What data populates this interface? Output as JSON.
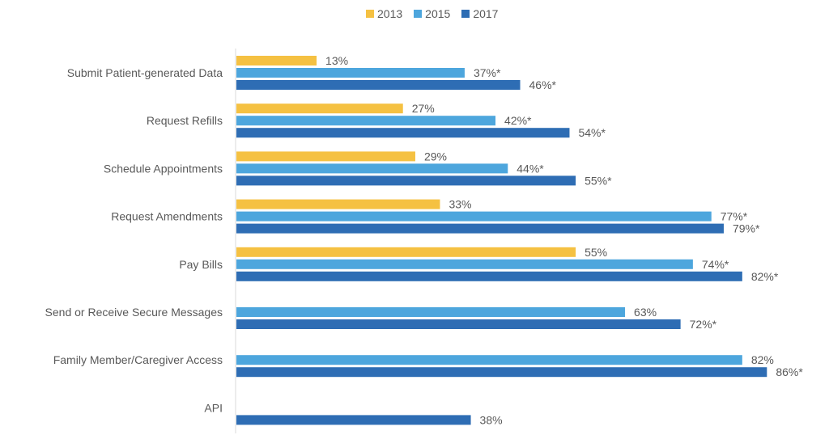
{
  "chart_data": {
    "type": "bar",
    "orientation": "horizontal",
    "categories": [
      "Submit Patient-generated Data",
      "Request Refills",
      "Schedule Appointments",
      "Request Amendments",
      "Pay Bills",
      "Send or Receive Secure Messages",
      "Family Member/Caregiver Access",
      "API"
    ],
    "series": [
      {
        "name": "2013",
        "color": "#F5C142",
        "values": [
          13,
          27,
          29,
          33,
          55,
          null,
          null,
          null
        ],
        "labels": [
          "13%",
          "27%",
          "29%",
          "33%",
          "55%",
          null,
          null,
          null
        ]
      },
      {
        "name": "2015",
        "color": "#4DA6DD",
        "values": [
          37,
          42,
          44,
          77,
          74,
          63,
          82,
          null
        ],
        "labels": [
          "37%*",
          "42%*",
          "44%*",
          "77%*",
          "74%*",
          "63%",
          "82%",
          null
        ]
      },
      {
        "name": "2017",
        "color": "#2E6DB4",
        "values": [
          46,
          54,
          55,
          79,
          82,
          72,
          86,
          38
        ],
        "labels": [
          "46%*",
          "54%*",
          "55%*",
          "79%*",
          "82%*",
          "72%*",
          "86%*",
          "38%"
        ]
      }
    ],
    "xlim": [
      0,
      100
    ],
    "unit": "%",
    "grid": false,
    "legend_position": "top"
  }
}
